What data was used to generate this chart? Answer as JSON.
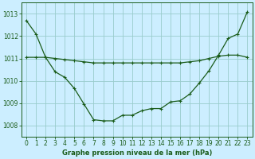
{
  "title": "Graphe pression niveau de la mer (hPa)",
  "background_color": "#cceeff",
  "grid_color": "#99cccc",
  "line_color": "#1a5c1a",
  "x_ticks": [
    0,
    1,
    2,
    3,
    4,
    5,
    6,
    7,
    8,
    9,
    10,
    11,
    12,
    13,
    14,
    15,
    16,
    17,
    18,
    19,
    20,
    21,
    22,
    23
  ],
  "y_ticks": [
    1008,
    1009,
    1010,
    1011,
    1012,
    1013
  ],
  "ylim": [
    1007.5,
    1013.5
  ],
  "xlim": [
    -0.5,
    23.5
  ],
  "line1_x": [
    0,
    1,
    2,
    3,
    4,
    5,
    6,
    7,
    8,
    9,
    10,
    11,
    12,
    13,
    14,
    15,
    16,
    17,
    18,
    19,
    20,
    21,
    22,
    23
  ],
  "line1_y": [
    1012.7,
    1012.1,
    1011.05,
    1010.4,
    1010.15,
    1009.65,
    1008.95,
    1008.25,
    1008.2,
    1008.2,
    1008.45,
    1008.45,
    1008.65,
    1008.75,
    1008.75,
    1009.05,
    1009.1,
    1009.4,
    1009.9,
    1010.45,
    1011.15,
    1011.9,
    1012.1,
    1013.1
  ],
  "line2_x": [
    0,
    1,
    2,
    3,
    4,
    5,
    6,
    7,
    8,
    9,
    10,
    11,
    12,
    13,
    14,
    15,
    16,
    17,
    18,
    19,
    20,
    21,
    22,
    23
  ],
  "line2_y": [
    1011.05,
    1011.05,
    1011.05,
    1011.0,
    1010.95,
    1010.9,
    1010.85,
    1010.8,
    1010.8,
    1010.8,
    1010.8,
    1010.8,
    1010.8,
    1010.8,
    1010.8,
    1010.8,
    1010.8,
    1010.85,
    1010.9,
    1011.0,
    1011.1,
    1011.15,
    1011.15,
    1011.05
  ],
  "tick_fontsize": 5.5,
  "label_fontsize": 6.0
}
